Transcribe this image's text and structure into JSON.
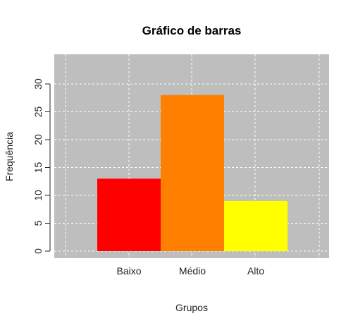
{
  "chart_data": {
    "type": "bar",
    "title": "Gráfico de barras",
    "xlabel": "Grupos",
    "ylabel": "Frequência",
    "categories": [
      "Baixo",
      "Médio",
      "Alto"
    ],
    "values": [
      13,
      28,
      9
    ],
    "colors": [
      "#ff0000",
      "#ff7f00",
      "#ffff00"
    ],
    "ylim": [
      0,
      33
    ],
    "yticks": [
      0,
      5,
      10,
      15,
      20,
      25,
      30
    ],
    "grid": true,
    "background_color": "#bebebe",
    "grid_color": "#ffffff"
  }
}
